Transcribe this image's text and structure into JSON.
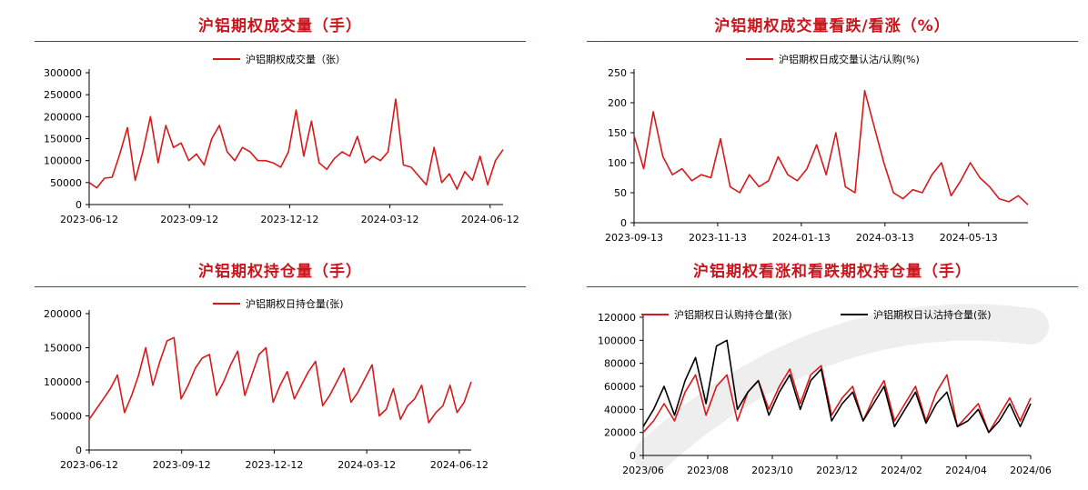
{
  "colors": {
    "accent": "#c8161d",
    "series_red": "#d7191c",
    "series_black": "#000000",
    "axis": "#000000"
  },
  "chart_data": [
    {
      "type": "line",
      "title": "沪铝期权成交量（手）",
      "x": [
        "2023-06-12",
        "2023-06-19",
        "2023-06-26",
        "2023-07-03",
        "2023-07-10",
        "2023-07-17",
        "2023-07-24",
        "2023-07-31",
        "2023-08-07",
        "2023-08-14",
        "2023-08-21",
        "2023-08-28",
        "2023-09-04",
        "2023-09-11",
        "2023-09-18",
        "2023-09-25",
        "2023-10-02",
        "2023-10-09",
        "2023-10-16",
        "2023-10-23",
        "2023-10-30",
        "2023-11-06",
        "2023-11-13",
        "2023-11-20",
        "2023-11-27",
        "2023-12-04",
        "2023-12-11",
        "2023-12-18",
        "2023-12-25",
        "2024-01-01",
        "2024-01-08",
        "2024-01-15",
        "2024-01-22",
        "2024-01-29",
        "2024-02-05",
        "2024-02-12",
        "2024-02-19",
        "2024-02-26",
        "2024-03-04",
        "2024-03-11",
        "2024-03-18",
        "2024-03-25",
        "2024-04-01",
        "2024-04-08",
        "2024-04-15",
        "2024-04-22",
        "2024-04-29",
        "2024-05-06",
        "2024-05-13",
        "2024-05-20",
        "2024-05-27",
        "2024-06-03",
        "2024-06-10",
        "2024-06-17",
        "2024-06-24"
      ],
      "series": [
        {
          "name": "沪铝期权成交量（张）",
          "values": [
            50000,
            38000,
            60000,
            62000,
            115000,
            175000,
            55000,
            120000,
            200000,
            95000,
            180000,
            130000,
            140000,
            100000,
            115000,
            90000,
            150000,
            180000,
            120000,
            100000,
            130000,
            120000,
            100000,
            100000,
            95000,
            85000,
            120000,
            215000,
            110000,
            190000,
            95000,
            80000,
            105000,
            120000,
            110000,
            155000,
            95000,
            110000,
            100000,
            120000,
            240000,
            90000,
            85000,
            65000,
            45000,
            130000,
            50000,
            70000,
            35000,
            75000,
            55000,
            110000,
            45000,
            100000,
            125000
          ]
        }
      ],
      "xticks": [
        "2023-06-12",
        "2023-09-12",
        "2023-12-12",
        "2024-03-12",
        "2024-06-12"
      ],
      "yticks": [
        "0",
        "50000",
        "100000",
        "150000",
        "200000",
        "250000",
        "300000"
      ],
      "ylim": [
        0,
        300000
      ]
    },
    {
      "type": "line",
      "title": "沪铝期权成交量看跌/看涨（%）",
      "x": [
        "2023-09-13",
        "2023-09-20",
        "2023-09-27",
        "2023-10-04",
        "2023-10-11",
        "2023-10-18",
        "2023-10-25",
        "2023-11-01",
        "2023-11-08",
        "2023-11-15",
        "2023-11-22",
        "2023-11-29",
        "2023-12-06",
        "2023-12-13",
        "2023-12-20",
        "2023-12-27",
        "2024-01-03",
        "2024-01-10",
        "2024-01-17",
        "2024-01-24",
        "2024-01-31",
        "2024-02-07",
        "2024-02-14",
        "2024-02-21",
        "2024-02-28",
        "2024-03-06",
        "2024-03-13",
        "2024-03-20",
        "2024-03-27",
        "2024-04-03",
        "2024-04-10",
        "2024-04-17",
        "2024-04-24",
        "2024-05-01",
        "2024-05-08",
        "2024-05-15",
        "2024-05-22",
        "2024-05-29",
        "2024-06-05",
        "2024-06-12",
        "2024-06-19",
        "2024-06-26"
      ],
      "series": [
        {
          "name": "沪铝期权日成交量认沽/认购(%)",
          "values": [
            145,
            90,
            185,
            110,
            80,
            90,
            70,
            80,
            75,
            140,
            60,
            50,
            80,
            60,
            70,
            110,
            80,
            70,
            90,
            130,
            80,
            150,
            60,
            50,
            220,
            160,
            100,
            50,
            40,
            55,
            50,
            80,
            100,
            45,
            70,
            100,
            75,
            60,
            40,
            35,
            45,
            30
          ]
        }
      ],
      "xticks": [
        "2023-09-13",
        "2023-11-13",
        "2024-01-13",
        "2024-03-13",
        "2024-05-13"
      ],
      "yticks": [
        "0",
        "50",
        "100",
        "150",
        "200",
        "250"
      ],
      "ylim": [
        0,
        250
      ]
    },
    {
      "type": "line",
      "title": "沪铝期权持仓量（手）",
      "x": [
        "2023-06-12",
        "2023-06-19",
        "2023-06-26",
        "2023-07-03",
        "2023-07-10",
        "2023-07-17",
        "2023-07-24",
        "2023-07-31",
        "2023-08-07",
        "2023-08-14",
        "2023-08-21",
        "2023-08-28",
        "2023-09-04",
        "2023-09-11",
        "2023-09-18",
        "2023-09-25",
        "2023-10-02",
        "2023-10-09",
        "2023-10-16",
        "2023-10-23",
        "2023-10-30",
        "2023-11-06",
        "2023-11-13",
        "2023-11-20",
        "2023-11-27",
        "2023-12-04",
        "2023-12-11",
        "2023-12-18",
        "2023-12-25",
        "2024-01-01",
        "2024-01-08",
        "2024-01-15",
        "2024-01-22",
        "2024-01-29",
        "2024-02-05",
        "2024-02-12",
        "2024-02-19",
        "2024-02-26",
        "2024-03-04",
        "2024-03-11",
        "2024-03-18",
        "2024-03-25",
        "2024-04-01",
        "2024-04-08",
        "2024-04-15",
        "2024-04-22",
        "2024-04-29",
        "2024-05-06",
        "2024-05-13",
        "2024-05-20",
        "2024-05-27",
        "2024-06-03",
        "2024-06-10",
        "2024-06-17",
        "2024-06-24"
      ],
      "series": [
        {
          "name": "沪铝期权日持仓量(张)",
          "values": [
            45000,
            60000,
            75000,
            90000,
            110000,
            55000,
            80000,
            110000,
            150000,
            95000,
            130000,
            160000,
            165000,
            75000,
            95000,
            120000,
            135000,
            140000,
            80000,
            100000,
            125000,
            145000,
            80000,
            110000,
            140000,
            150000,
            70000,
            95000,
            115000,
            75000,
            95000,
            115000,
            130000,
            65000,
            80000,
            100000,
            120000,
            70000,
            85000,
            105000,
            125000,
            50000,
            60000,
            90000,
            45000,
            65000,
            75000,
            95000,
            40000,
            55000,
            65000,
            95000,
            55000,
            70000,
            100000
          ]
        }
      ],
      "xticks": [
        "2023-06-12",
        "2023-09-12",
        "2023-12-12",
        "2024-03-12",
        "2024-06-12"
      ],
      "yticks": [
        "0",
        "50000",
        "100000",
        "150000",
        "200000"
      ],
      "ylim": [
        0,
        200000
      ]
    },
    {
      "type": "line",
      "title": "沪铝期权看涨和看跌期权持仓量（手）",
      "x": [
        "2023/06",
        "2023/06",
        "2023/07",
        "2023/07",
        "2023/07",
        "2023/08",
        "2023/08",
        "2023/08",
        "2023/09",
        "2023/09",
        "2023/09",
        "2023/10",
        "2023/10",
        "2023/10",
        "2023/11",
        "2023/11",
        "2023/11",
        "2023/12",
        "2023/12",
        "2023/12",
        "2024/01",
        "2024/01",
        "2024/01",
        "2024/02",
        "2024/02",
        "2024/02",
        "2024/03",
        "2024/03",
        "2024/03",
        "2024/04",
        "2024/04",
        "2024/04",
        "2024/05",
        "2024/05",
        "2024/05",
        "2024/06",
        "2024/06",
        "2024/06"
      ],
      "series": [
        {
          "name": "沪铝期权日认购持仓量(张)",
          "values": [
            20000,
            30000,
            45000,
            30000,
            55000,
            70000,
            35000,
            60000,
            70000,
            30000,
            55000,
            65000,
            40000,
            60000,
            75000,
            45000,
            70000,
            78000,
            35000,
            50000,
            60000,
            30000,
            50000,
            65000,
            30000,
            45000,
            60000,
            30000,
            55000,
            70000,
            25000,
            35000,
            45000,
            20000,
            35000,
            50000,
            30000,
            50000
          ]
        },
        {
          "name": "沪铝期权日认沽持仓量(张)",
          "values": [
            25000,
            40000,
            60000,
            35000,
            65000,
            85000,
            45000,
            95000,
            100000,
            40000,
            55000,
            65000,
            35000,
            55000,
            70000,
            40000,
            65000,
            75000,
            30000,
            45000,
            55000,
            30000,
            45000,
            60000,
            25000,
            40000,
            55000,
            28000,
            45000,
            55000,
            25000,
            30000,
            40000,
            20000,
            30000,
            45000,
            25000,
            45000
          ]
        }
      ],
      "xticks": [
        "2023/06",
        "2023/08",
        "2023/10",
        "2023/12",
        "2024/02",
        "2024/04",
        "2024/06"
      ],
      "yticks": [
        "0",
        "20000",
        "40000",
        "60000",
        "80000",
        "100000",
        "120000"
      ],
      "ylim": [
        0,
        120000
      ]
    }
  ]
}
